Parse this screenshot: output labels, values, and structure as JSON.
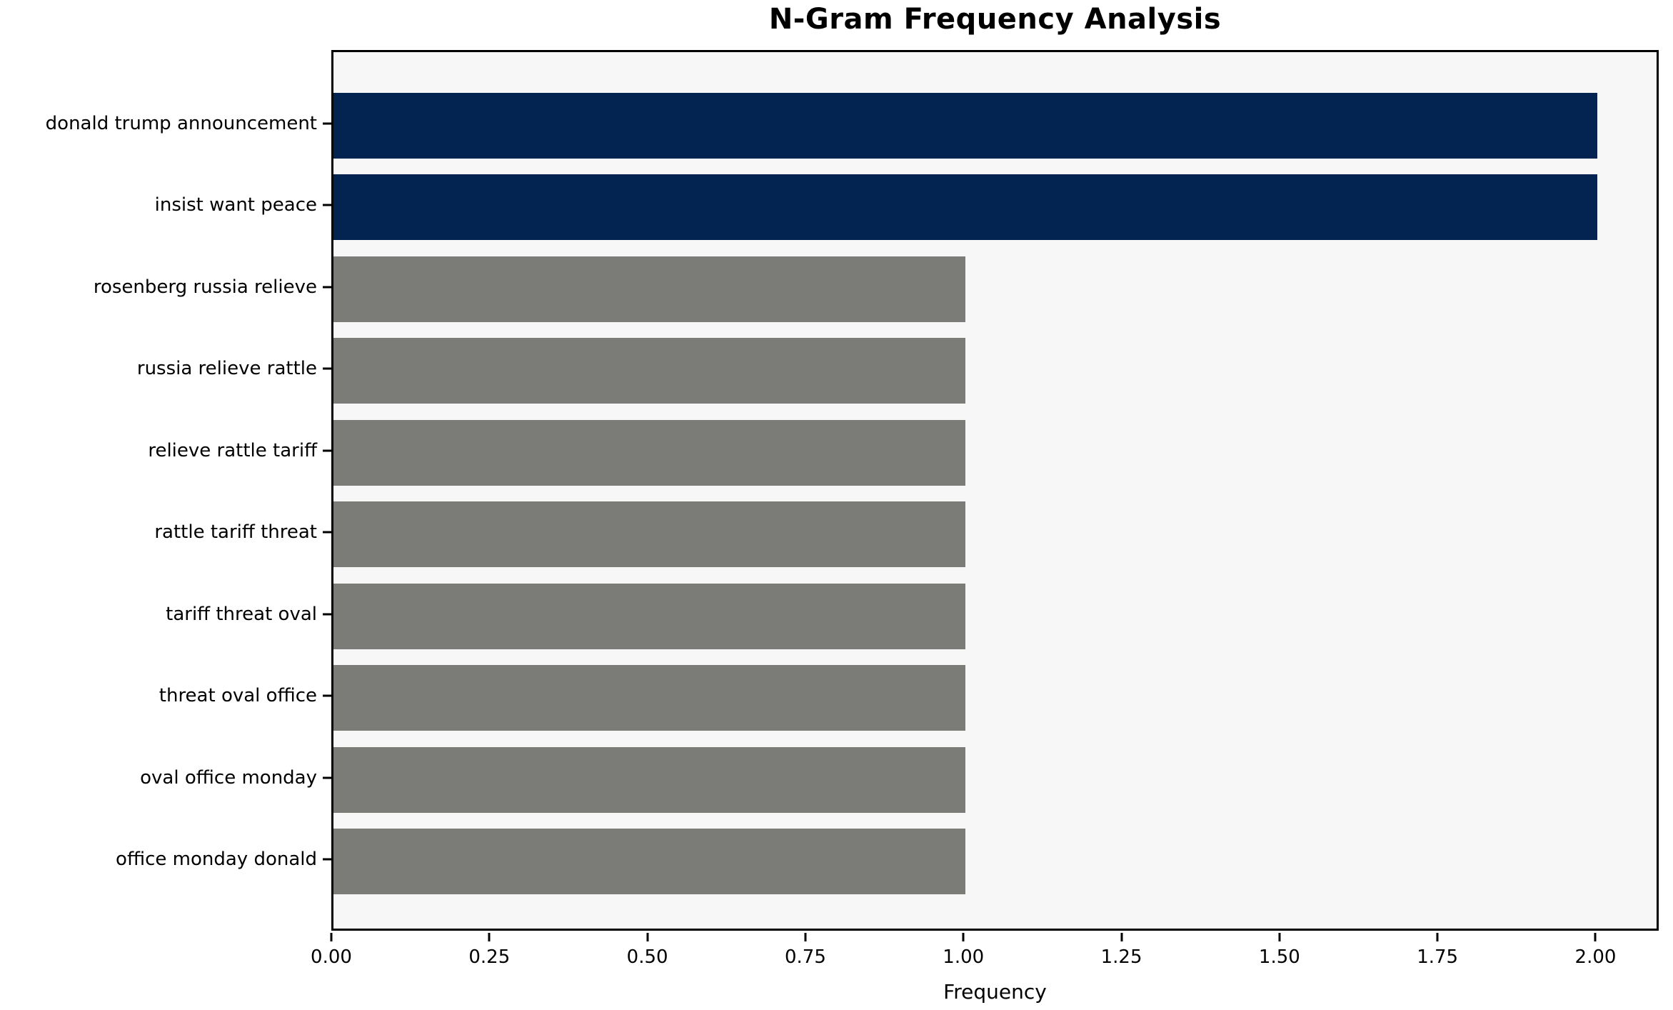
{
  "chart_data": {
    "type": "bar",
    "orientation": "horizontal",
    "title": "N-Gram Frequency Analysis",
    "xlabel": "Frequency",
    "ylabel": "",
    "categories": [
      "donald trump announcement",
      "insist want peace",
      "rosenberg russia relieve",
      "russia relieve rattle",
      "relieve rattle tariff",
      "rattle tariff threat",
      "tariff threat oval",
      "threat oval office",
      "oval office monday",
      "office monday donald"
    ],
    "values": [
      2,
      2,
      1,
      1,
      1,
      1,
      1,
      1,
      1,
      1
    ],
    "bar_colors": [
      "#032450",
      "#032450",
      "#7B7B78",
      "#7B7B78",
      "#7B7B78",
      "#7B7B78",
      "#7B7B78",
      "#7B7B78",
      "#7B7B78",
      "#7B7B78"
    ],
    "xlim": [
      0,
      2.1
    ],
    "xticks": [
      "0.00",
      "0.25",
      "0.50",
      "0.75",
      "1.00",
      "1.25",
      "1.50",
      "1.75",
      "2.00"
    ],
    "xtick_values": [
      0,
      0.25,
      0.5,
      0.75,
      1.0,
      1.25,
      1.5,
      1.75,
      2.0
    ],
    "grid": false,
    "legend": null
  },
  "colors": {
    "highlight_bar": "#032450",
    "default_bar": "#7B7B78",
    "plot_background": "#F8F7F7",
    "page_background": "#FFFFFF",
    "spine": "#000000",
    "text": "#000000"
  }
}
